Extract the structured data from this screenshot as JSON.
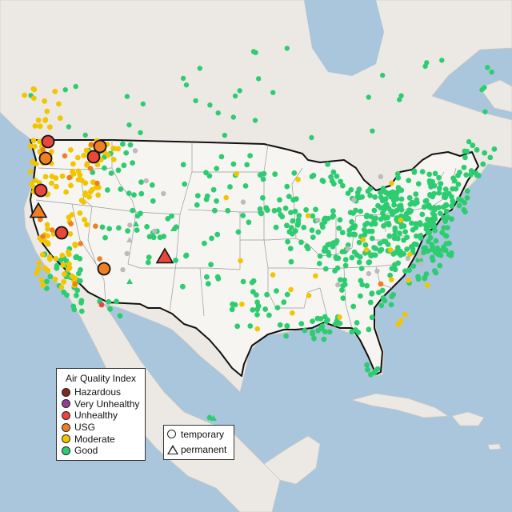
{
  "colors": {
    "ocean": "#a9c6dc",
    "land": "#ece9e4",
    "us_land": "#f6f5f2",
    "hazardous": "#7e2a22",
    "very_unhealthy": "#8f3f97",
    "unhealthy": "#e8473b",
    "usg": "#f07e23",
    "moderate": "#f2c500",
    "good": "#2ecc71",
    "no_data": "#bbbbbb"
  },
  "legend": {
    "title": "Air Quality Index",
    "items": [
      {
        "key": "hazardous",
        "label": "Hazardous",
        "color": "#7e2a22"
      },
      {
        "key": "very_unhealthy",
        "label": "Very Unhealthy",
        "color": "#8f3f97"
      },
      {
        "key": "unhealthy",
        "label": "Unhealthy",
        "color": "#e8473b"
      },
      {
        "key": "usg",
        "label": "USG",
        "color": "#f07e23"
      },
      {
        "key": "moderate",
        "label": "Moderate",
        "color": "#f2c500"
      },
      {
        "key": "good",
        "label": "Good",
        "color": "#2ecc71"
      }
    ]
  },
  "shape_legend": {
    "temporary": "temporary",
    "permanent": "permanent"
  }
}
